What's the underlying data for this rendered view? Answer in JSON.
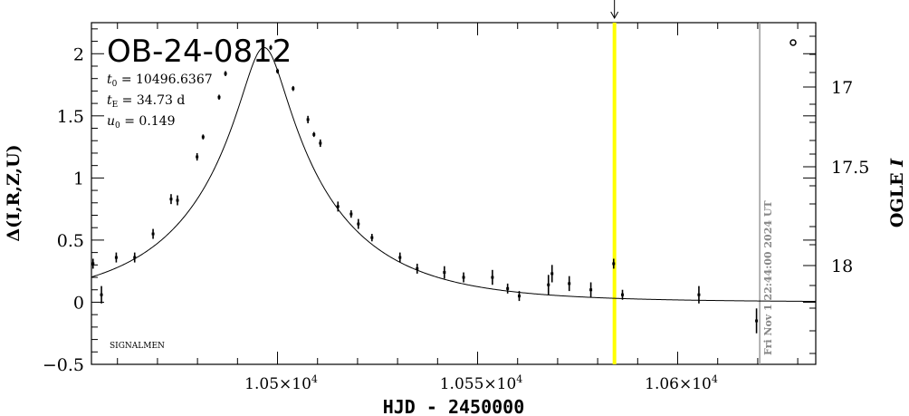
{
  "chart_data": {
    "type": "scatter",
    "title": "OB-24-0812",
    "xlabel": "HJD - 2450000",
    "ylabel": "Δ(I,R,Z,U)",
    "y2label": "OGLE I",
    "xlim": [
      10453.5,
      10634.5
    ],
    "ylim": [
      -0.5,
      2.25
    ],
    "y2lim": [
      17.83,
      17.25
    ],
    "x_ticks": [
      {
        "value": 10500,
        "mantissa": "1.05×10",
        "exp": "4"
      },
      {
        "value": 10550,
        "mantissa": "1.055×10",
        "exp": "4"
      },
      {
        "value": 10600,
        "mantissa": "1.06×10",
        "exp": "4"
      }
    ],
    "y_ticks": [
      "−0.5",
      "0",
      "0.5",
      "1",
      "1.5",
      "2"
    ],
    "y_tick_values": [
      -0.5,
      0,
      0.5,
      1,
      1.5,
      2
    ],
    "y2_ticks": [
      "17",
      "17.5",
      "18"
    ],
    "y2_tick_values": [
      17,
      17.5,
      18
    ],
    "params": {
      "t0_value": "10496.6367",
      "tE_value": "34.73 d",
      "u0_value": "0.149"
    },
    "grid": false,
    "model_curve": true,
    "annotation_signalmen": "SIGNALMEN",
    "current_date_label": "Fri Nov  1 22:44:00 2024 UT",
    "current_date_x": 10620.5,
    "highlight_x": 10584.2,
    "highlight_color": "#ffff00",
    "points": [
      {
        "x": 10453.9,
        "y": 0.31,
        "e": 0.04
      },
      {
        "x": 10456.0,
        "y": 0.06,
        "e": 0.07
      },
      {
        "x": 10459.7,
        "y": 0.36,
        "e": 0.04
      },
      {
        "x": 10464.3,
        "y": 0.36,
        "e": 0.04
      },
      {
        "x": 10468.9,
        "y": 0.55,
        "e": 0.04
      },
      {
        "x": 10473.4,
        "y": 0.83,
        "e": 0.04
      },
      {
        "x": 10475.0,
        "y": 0.82,
        "e": 0.04
      },
      {
        "x": 10479.9,
        "y": 1.17,
        "e": 0.03
      },
      {
        "x": 10481.4,
        "y": 1.33,
        "e": 0.02
      },
      {
        "x": 10485.4,
        "y": 1.65,
        "e": 0.02
      },
      {
        "x": 10487.0,
        "y": 1.84,
        "e": 0.02
      },
      {
        "x": 10498.3,
        "y": 2.05,
        "e": 0.02
      },
      {
        "x": 10500.0,
        "y": 1.86,
        "e": 0.02
      },
      {
        "x": 10503.9,
        "y": 1.72,
        "e": 0.02
      },
      {
        "x": 10507.6,
        "y": 1.47,
        "e": 0.03
      },
      {
        "x": 10509.1,
        "y": 1.35,
        "e": 0.02
      },
      {
        "x": 10510.7,
        "y": 1.28,
        "e": 0.03
      },
      {
        "x": 10515.1,
        "y": 0.77,
        "e": 0.04
      },
      {
        "x": 10518.4,
        "y": 0.71,
        "e": 0.03
      },
      {
        "x": 10520.2,
        "y": 0.63,
        "e": 0.04
      },
      {
        "x": 10523.6,
        "y": 0.52,
        "e": 0.03
      },
      {
        "x": 10530.6,
        "y": 0.36,
        "e": 0.04
      },
      {
        "x": 10534.9,
        "y": 0.27,
        "e": 0.04
      },
      {
        "x": 10541.7,
        "y": 0.24,
        "e": 0.05
      },
      {
        "x": 10546.5,
        "y": 0.2,
        "e": 0.04
      },
      {
        "x": 10553.7,
        "y": 0.2,
        "e": 0.06
      },
      {
        "x": 10557.5,
        "y": 0.11,
        "e": 0.04
      },
      {
        "x": 10560.4,
        "y": 0.05,
        "e": 0.04
      },
      {
        "x": 10567.7,
        "y": 0.14,
        "e": 0.08
      },
      {
        "x": 10568.6,
        "y": 0.23,
        "e": 0.07
      },
      {
        "x": 10572.9,
        "y": 0.15,
        "e": 0.06
      },
      {
        "x": 10578.3,
        "y": 0.1,
        "e": 0.06
      },
      {
        "x": 10584.0,
        "y": 0.31,
        "e": 0.04
      },
      {
        "x": 10586.2,
        "y": 0.06,
        "e": 0.04
      },
      {
        "x": 10605.3,
        "y": 0.06,
        "e": 0.07
      },
      {
        "x": 10619.7,
        "y": -0.15,
        "e": 0.1
      }
    ]
  }
}
